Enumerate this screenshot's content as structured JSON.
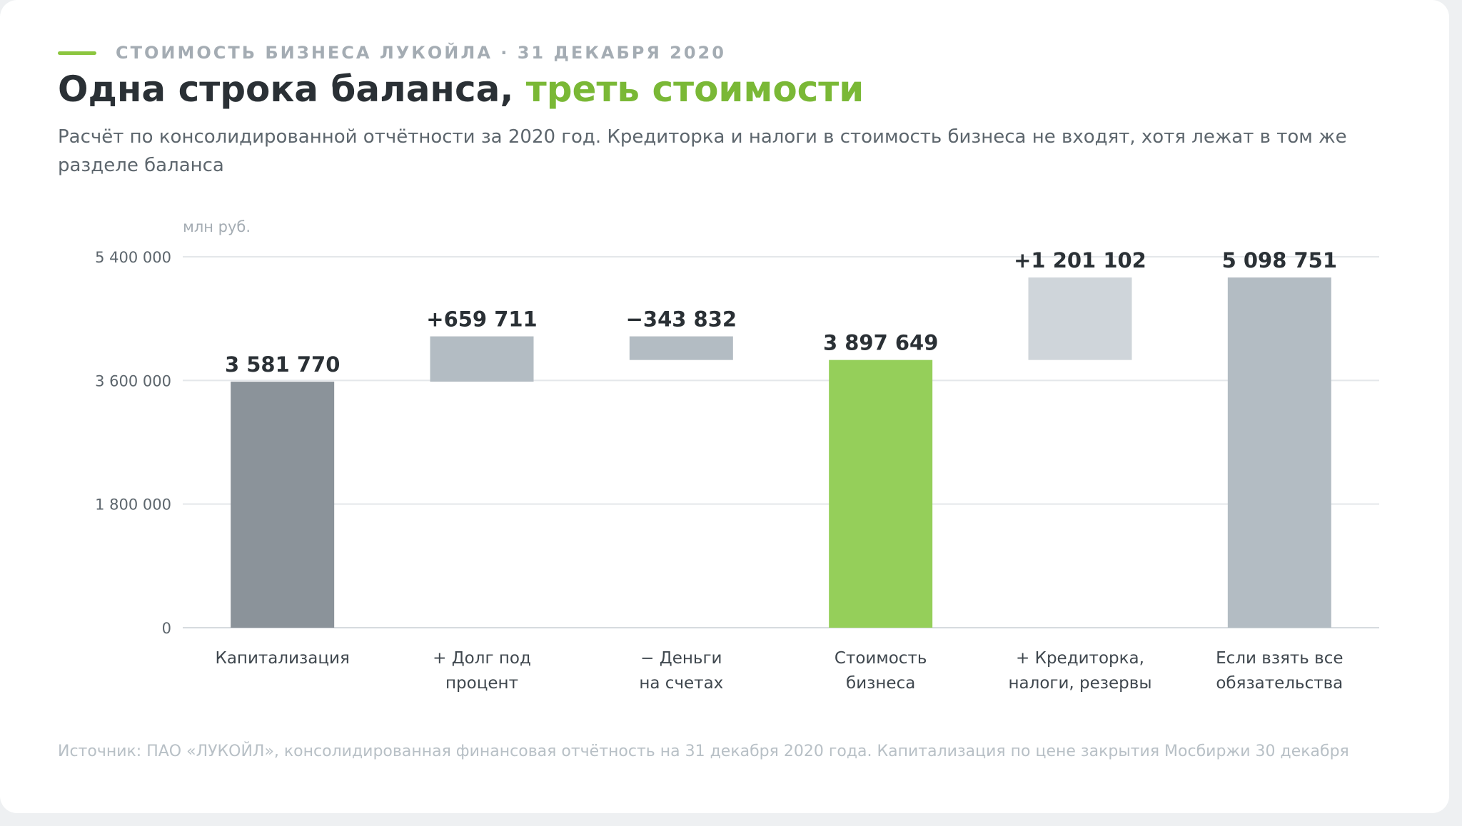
{
  "header": {
    "kicker": "СТОИМОСТЬ БИЗНЕСА ЛУКОЙЛА · 31 ДЕКАБРЯ 2020",
    "title_main": "Одна строка баланса, ",
    "title_accent": "треть стоимости",
    "subtitle": "Расчёт по консолидированной отчётности за 2020 год. Кредиторка и налоги в стоимость бизнеса не входят, хотя лежат в том же разделе баланса"
  },
  "colors": {
    "accent": "#8cc63f",
    "accent_text": "#7ab836",
    "bar_dark": "#8b939a",
    "bar_mid": "#b3bcc3",
    "bar_light": "#cfd5da"
  },
  "chart_data": {
    "type": "bar",
    "subtype": "waterfall",
    "unit": "млн руб.",
    "ylim": [
      0,
      5400000
    ],
    "yticks": [
      0,
      1800000,
      3600000,
      5400000
    ],
    "ytick_labels": [
      "0",
      "1 800 000",
      "3 600 000",
      "5 400 000"
    ],
    "grid": true,
    "categories": [
      [
        "Капитализация"
      ],
      [
        "+ Долг под",
        "процент"
      ],
      [
        "− Деньги",
        "на счетах"
      ],
      [
        "Стоимость",
        "бизнеса"
      ],
      [
        "+ Кредиторка,",
        "налоги, резервы"
      ],
      [
        "Если взять все",
        "обязательства"
      ]
    ],
    "bars": [
      {
        "start": 0,
        "end": 3581770,
        "label": "3 581 770",
        "color": "#8b939a"
      },
      {
        "start": 3581770,
        "end": 4241481,
        "label": "+659 711",
        "color": "#b3bcc3"
      },
      {
        "start": 3897649,
        "end": 4241481,
        "label": "−343 832",
        "color": "#b3bcc3"
      },
      {
        "start": 0,
        "end": 3897649,
        "label": "3 897 649",
        "color": "#95cf5a"
      },
      {
        "start": 3897649,
        "end": 5098751,
        "label": "+1 201 102",
        "color": "#cfd5da"
      },
      {
        "start": 0,
        "end": 5098751,
        "label": "5 098 751",
        "color": "#b3bcc3"
      }
    ]
  },
  "footer": {
    "source": "Источник: ПАО «ЛУКОЙЛ», консолидированная финансовая отчётность на 31 декабря 2020 года. Капитализация по цене закрытия Мосбиржи 30 декабря"
  }
}
